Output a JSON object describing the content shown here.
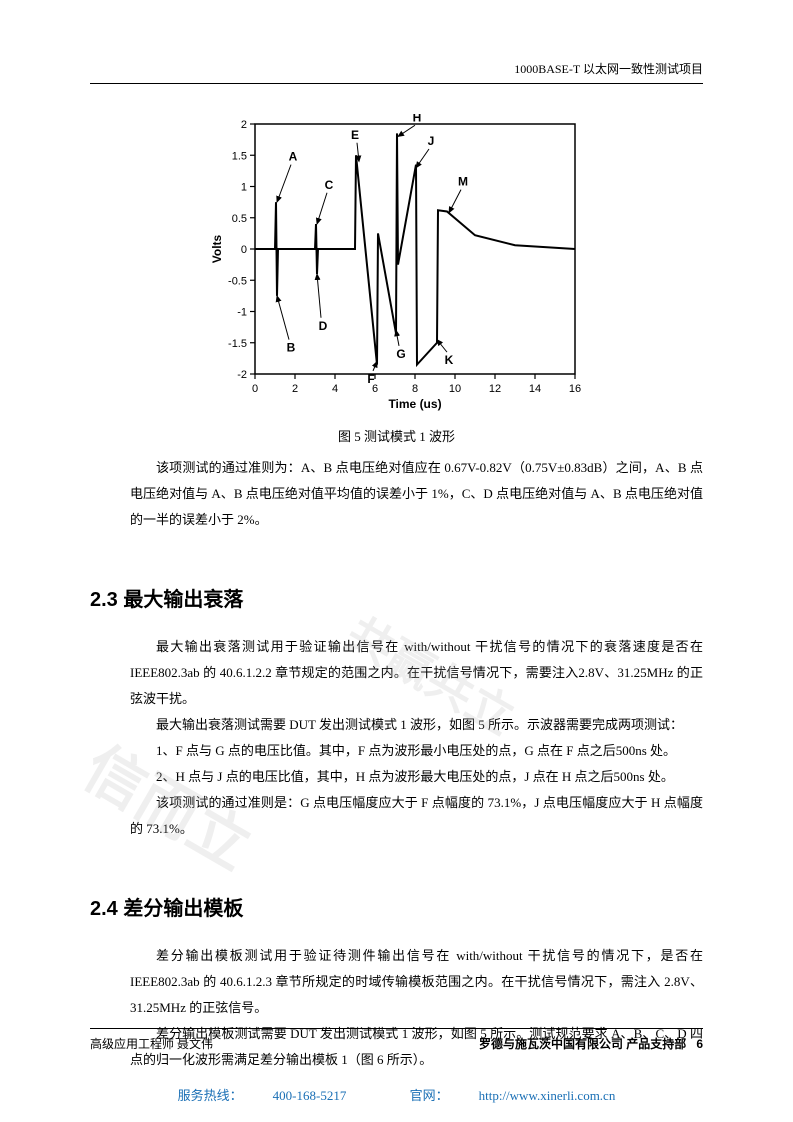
{
  "header": {
    "right": "1000BASE-T 以太网一致性测试项目"
  },
  "chart": {
    "type": "line",
    "xlabel": "Time (us)",
    "ylabel": "Volts",
    "xlim": [
      0,
      16
    ],
    "ylim": [
      -2,
      2
    ],
    "xticks": [
      0,
      2,
      4,
      6,
      8,
      10,
      12,
      14,
      16
    ],
    "yticks": [
      -2,
      -1.5,
      -1,
      -0.5,
      0,
      0.5,
      1,
      1.5,
      2
    ],
    "axis_color": "#000000",
    "grid_color": "#000000",
    "line_color": "#000000",
    "line_width": 2,
    "label_fontsize": 12,
    "tick_fontsize": 11,
    "background_color": "#ffffff",
    "points": {
      "A": {
        "x": 1.1,
        "y": 0.75
      },
      "B": {
        "x": 1.1,
        "y": -0.75
      },
      "C": {
        "x": 3.1,
        "y": 0.4
      },
      "D": {
        "x": 3.1,
        "y": -0.4
      },
      "E": {
        "x": 5.1,
        "y": 1.5
      },
      "F": {
        "x": 6.1,
        "y": -1.85
      },
      "G": {
        "x": 7.1,
        "y": -1.35
      },
      "H": {
        "x": 7.1,
        "y": 1.85
      },
      "J": {
        "x": 8.1,
        "y": 1.35
      },
      "K": {
        "x": 9.1,
        "y": -1.5
      },
      "M": {
        "x": 9.6,
        "y": 0.6
      }
    },
    "series": [
      [
        [
          0,
          0
        ],
        [
          1,
          0
        ],
        [
          1.05,
          0.75
        ],
        [
          1.1,
          -0.75
        ],
        [
          1.15,
          0
        ],
        [
          3,
          0
        ],
        [
          3.05,
          0.4
        ],
        [
          3.1,
          -0.4
        ],
        [
          3.15,
          0
        ],
        [
          5,
          0
        ],
        [
          5.05,
          1.5
        ],
        [
          6.1,
          -1.85
        ],
        [
          6.15,
          0.25
        ],
        [
          7.05,
          -1.35
        ],
        [
          7.1,
          1.85
        ],
        [
          7.15,
          -0.25
        ],
        [
          8.05,
          1.35
        ],
        [
          8.1,
          -1.85
        ],
        [
          9.1,
          -1.5
        ],
        [
          9.15,
          0.62
        ],
        [
          9.6,
          0.6
        ],
        [
          11,
          0.22
        ],
        [
          13,
          0.06
        ],
        [
          16,
          0
        ]
      ]
    ],
    "annotations": [
      {
        "label": "A",
        "lx": 1.8,
        "ly": 1.35,
        "tx": 1.1,
        "ty": 0.75
      },
      {
        "label": "B",
        "lx": 1.7,
        "ly": -1.45,
        "tx": 1.1,
        "ty": -0.75
      },
      {
        "label": "C",
        "lx": 3.6,
        "ly": 0.9,
        "tx": 3.1,
        "ty": 0.4
      },
      {
        "label": "D",
        "lx": 3.3,
        "ly": -1.1,
        "tx": 3.1,
        "ty": -0.4
      },
      {
        "label": "E",
        "lx": 5.1,
        "ly": 1.7,
        "tx": 5.2,
        "ty": 1.4
      },
      {
        "label": "F",
        "lx": 5.9,
        "ly": -1.95,
        "tx": 6.1,
        "ty": -1.8
      },
      {
        "label": "G",
        "lx": 7.2,
        "ly": -1.55,
        "tx": 7.05,
        "ty": -1.3
      },
      {
        "label": "H",
        "lx": 8.0,
        "ly": 1.98,
        "tx": 7.15,
        "ty": 1.8
      },
      {
        "label": "J",
        "lx": 8.7,
        "ly": 1.6,
        "tx": 8.05,
        "ty": 1.3
      },
      {
        "label": "K",
        "lx": 9.6,
        "ly": -1.65,
        "tx": 9.1,
        "ty": -1.45
      },
      {
        "label": "M",
        "lx": 10.3,
        "ly": 0.95,
        "tx": 9.7,
        "ty": 0.58
      }
    ]
  },
  "figure_caption": "图 5 测试模式 1 波形",
  "para1": "该项测试的通过准则为：A、B 点电压绝对值应在 0.67V-0.82V（0.75V±0.83dB）之间，A、B 点电压绝对值与 A、B 点电压绝对值平均值的误差小于 1%，C、D 点电压绝对值与 A、B 点电压绝对值的一半的误差小于 2%。",
  "section23_title": "2.3  最大输出衰落",
  "s23_p1": "最大输出衰落测试用于验证输出信号在 with/without 干扰信号的情况下的衰落速度是否在 IEEE802.3ab 的 40.6.1.2.2 章节规定的范围之内。在干扰信号情况下，需要注入2.8V、31.25MHz 的正弦波干扰。",
  "s23_p2": "最大输出衰落测试需要 DUT 发出测试模式 1 波形，如图 5 所示。示波器需要完成两项测试：",
  "s23_p3": "1、F 点与 G 点的电压比值。其中，F 点为波形最小电压处的点，G 点在 F 点之后500ns 处。",
  "s23_p4": "2、H 点与 J 点的电压比值，其中，H 点为波形最大电压处的点，J 点在 H 点之后500ns 处。",
  "s23_p5": "该项测试的通过准则是：G 点电压幅度应大于 F 点幅度的 73.1%，J 点电压幅度应大于 H 点幅度的 73.1%。",
  "section24_title": "2.4  差分输出模板",
  "s24_p1": "差分输出模板测试用于验证待测件输出信号在 with/without 干扰信号的情况下，是否在 IEEE802.3ab 的 40.6.1.2.3 章节所规定的时域传输模板范围之内。在干扰信号情况下，需注入 2.8V、31.25MHz 的正弦信号。",
  "s24_p2": "差分输出模板测试需要 DUT 发出测试模式 1 波形，如图 5 所示。测试规范要求 A、B、C、D 四点的归一化波形需满足差分输出模板 1（图 6 所示）。",
  "footer": {
    "left": "高级应用工程师 聂文伟",
    "right": "罗德与施瓦茨中国有限公司 产品支持部",
    "page": "6"
  },
  "bottombar": {
    "hotline_label": "服务热线：",
    "hotline_value": "400-168-5217",
    "site_label": "官网：",
    "site_value": "http://www.xinerli.com.cn"
  },
  "watermarks": [
    "信而立",
    "共赢共立"
  ]
}
